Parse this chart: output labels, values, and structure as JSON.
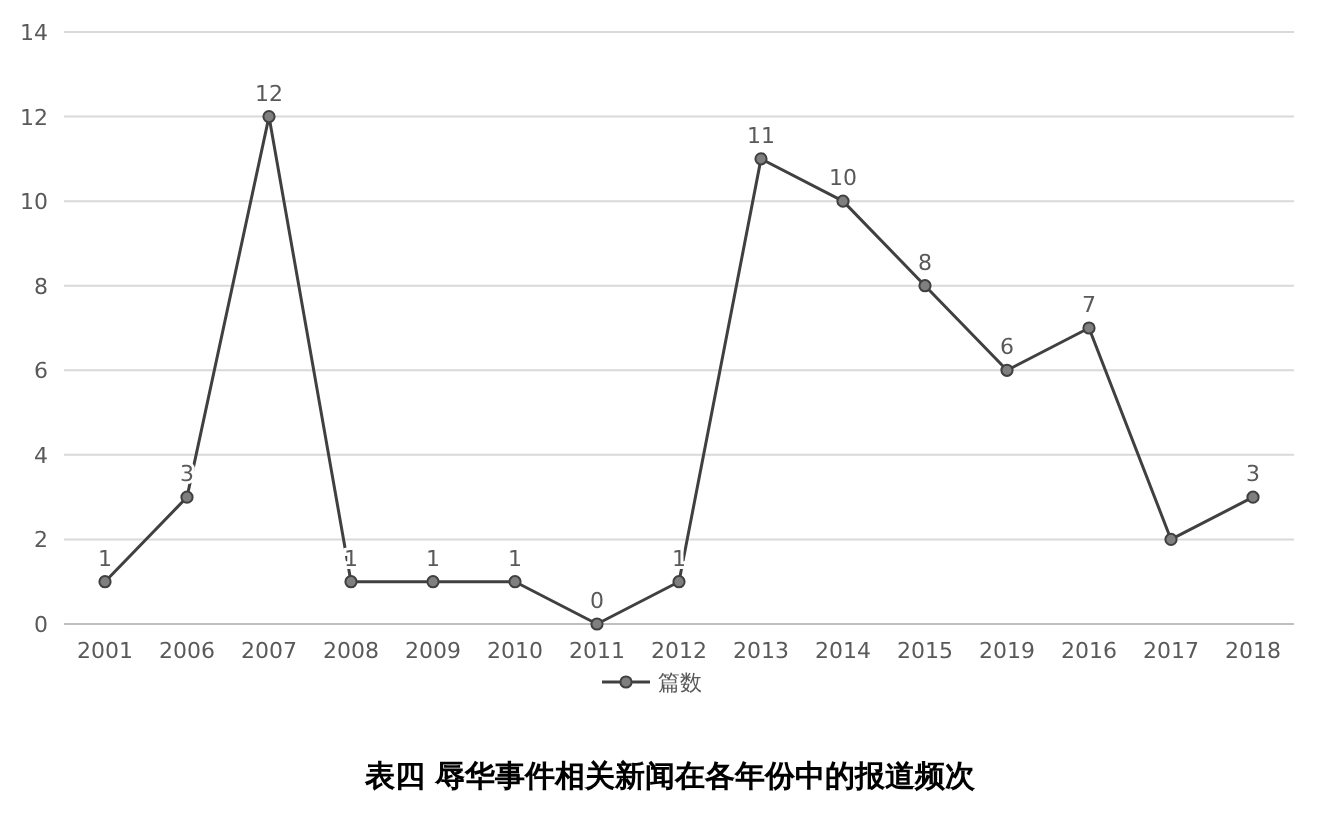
{
  "chart_data": {
    "type": "line",
    "title": "表四  辱华事件相关新闻在各年份中的报道频次",
    "categories": [
      "2001",
      "2006",
      "2007",
      "2008",
      "2009",
      "2010",
      "2011",
      "2012",
      "2013",
      "2014",
      "2015",
      "2019",
      "2016",
      "2017",
      "2018"
    ],
    "series": [
      {
        "name": "篇数",
        "color": "#404040",
        "values": [
          1,
          3,
          12,
          1,
          1,
          1,
          0,
          1,
          11,
          10,
          8,
          6,
          7,
          2,
          3
        ],
        "value_labels": [
          "1",
          "3",
          "12",
          "1",
          "1",
          "1",
          "0",
          "1",
          "11",
          "10",
          "8",
          "6",
          "7",
          null,
          "3"
        ]
      }
    ],
    "ylim": [
      0,
      14
    ],
    "yticks": [
      0,
      2,
      4,
      6,
      8,
      10,
      12,
      14
    ],
    "grid": "y",
    "legend": "bottom",
    "marker": "circle",
    "line_style": "solid"
  }
}
